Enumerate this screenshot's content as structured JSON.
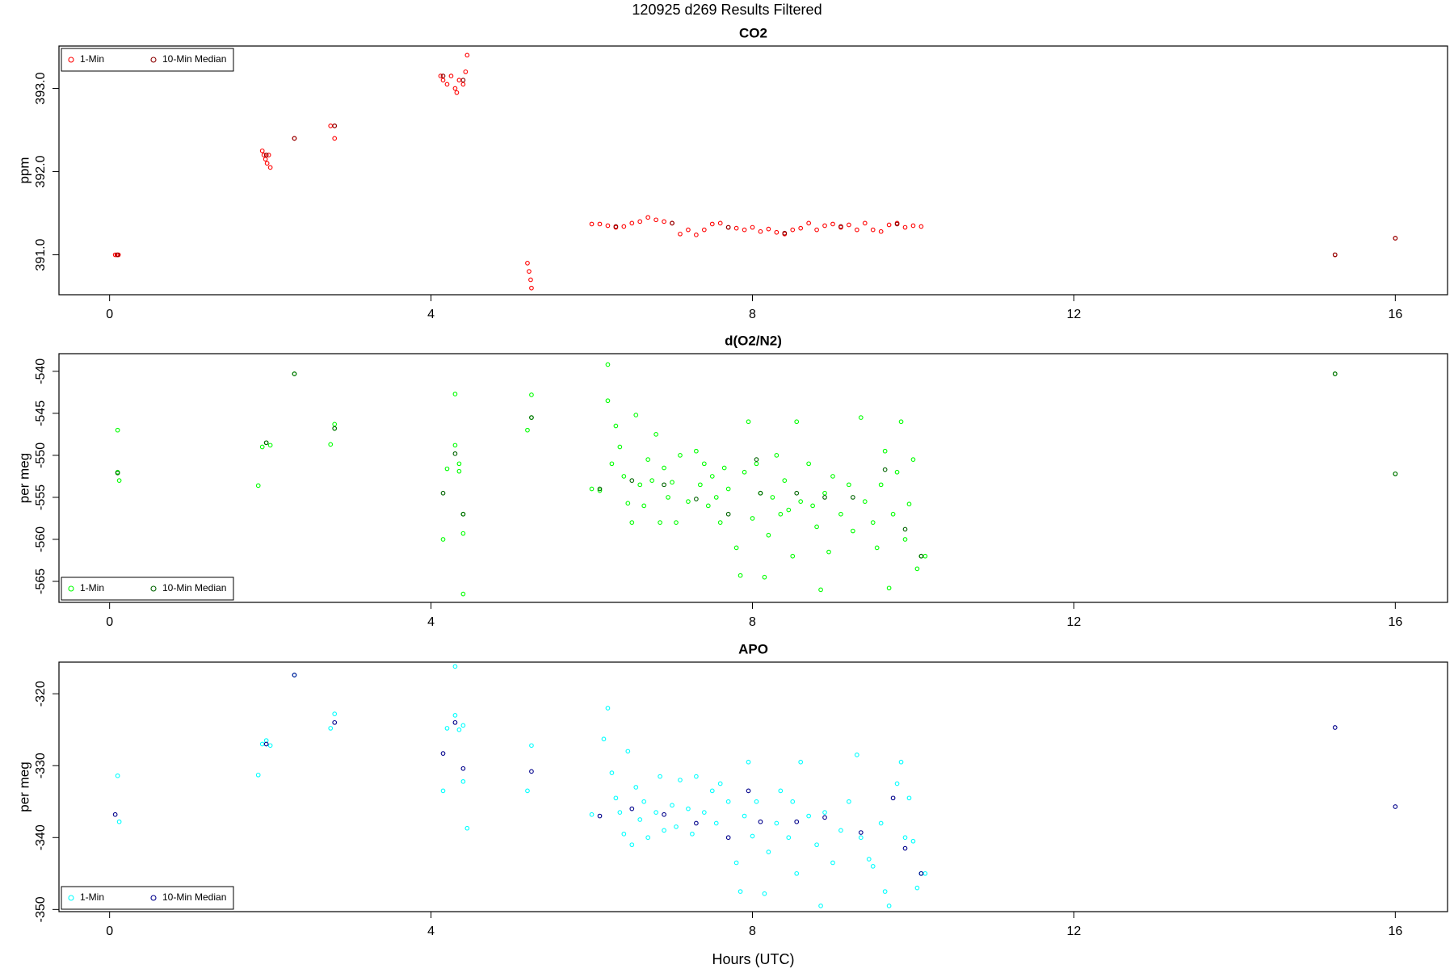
{
  "title": "120925   d269   Results Filtered",
  "chart_data": [
    {
      "type": "scatter",
      "title": "CO2",
      "y_label": "ppm",
      "legend": "top-left",
      "xlim": [
        -0.63,
        16.65
      ],
      "xticks": [
        0,
        4,
        8,
        12,
        16
      ],
      "ylim": [
        390.52,
        393.51
      ],
      "yticks": [
        {
          "value": 391,
          "label": "391.0"
        },
        {
          "value": 392,
          "label": "392.0"
        },
        {
          "value": 393,
          "label": "393.0"
        }
      ],
      "series": [
        {
          "name": "1-Min",
          "color": "#ff0000",
          "x": [
            0.07,
            0.09,
            0.11,
            1.9,
            1.92,
            1.94,
            1.96,
            1.98,
            2.0,
            2.3,
            2.75,
            2.8,
            2.8,
            4.12,
            4.15,
            4.2,
            4.25,
            4.3,
            4.32,
            4.35,
            4.4,
            4.43,
            4.45,
            5.2,
            5.22,
            5.24,
            5.25,
            6.0,
            6.1,
            6.2,
            6.3,
            6.4,
            6.5,
            6.6,
            6.7,
            6.8,
            6.9,
            7.0,
            7.1,
            7.2,
            7.3,
            7.4,
            7.5,
            7.6,
            7.7,
            7.8,
            7.9,
            8.0,
            8.1,
            8.2,
            8.3,
            8.4,
            8.5,
            8.6,
            8.7,
            8.8,
            8.9,
            9.0,
            9.1,
            9.2,
            9.3,
            9.4,
            9.5,
            9.6,
            9.7,
            9.8,
            9.9,
            10.0,
            10.1,
            15.25,
            16.0
          ],
          "values": [
            391.0,
            391.0,
            391.0,
            392.25,
            392.2,
            392.15,
            392.1,
            392.2,
            392.05,
            392.4,
            392.55,
            392.55,
            392.4,
            393.15,
            393.1,
            393.05,
            393.15,
            393.0,
            392.95,
            393.1,
            393.05,
            393.2,
            393.4,
            390.9,
            390.8,
            390.7,
            390.6,
            391.37,
            391.37,
            391.35,
            391.33,
            391.34,
            391.38,
            391.4,
            391.45,
            391.42,
            391.4,
            391.38,
            391.25,
            391.3,
            391.24,
            391.3,
            391.37,
            391.38,
            391.33,
            391.32,
            391.3,
            391.33,
            391.28,
            391.31,
            391.27,
            391.25,
            391.3,
            391.32,
            391.38,
            391.3,
            391.35,
            391.37,
            391.33,
            391.36,
            391.3,
            391.38,
            391.3,
            391.28,
            391.36,
            391.38,
            391.33,
            391.35,
            391.34,
            391.0,
            391.2
          ]
        },
        {
          "name": "10-Min Median",
          "color": "#8b0000",
          "x": [
            0.1,
            1.95,
            2.3,
            2.8,
            4.15,
            4.4,
            6.3,
            7.0,
            7.7,
            8.4,
            9.1,
            9.8,
            15.25,
            16.0
          ],
          "values": [
            391.0,
            392.2,
            392.4,
            392.55,
            393.15,
            393.1,
            391.34,
            391.38,
            391.33,
            391.26,
            391.34,
            391.37,
            391.0,
            391.2
          ]
        }
      ]
    },
    {
      "type": "scatter",
      "title": "d(O2/N2)",
      "y_label": "per meg",
      "legend": "bottom-left",
      "xlim": [
        -0.63,
        16.65
      ],
      "xticks": [
        0,
        4,
        8,
        12,
        16
      ],
      "ylim": [
        -567.5,
        -537.9
      ],
      "yticks": [
        -565,
        -560,
        -555,
        -550,
        -545,
        -540
      ],
      "series": [
        {
          "name": "1-Min",
          "color": "#00ff00",
          "x": [
            0.1,
            0.1,
            0.12,
            1.85,
            1.9,
            1.95,
            2.0,
            2.3,
            2.75,
            2.8,
            2.8,
            4.15,
            4.2,
            4.3,
            4.3,
            4.35,
            4.4,
            4.4,
            4.4,
            4.35,
            5.2,
            5.25,
            5.25,
            6.0,
            6.1,
            6.2,
            6.2,
            6.25,
            6.3,
            6.35,
            6.4,
            6.45,
            6.5,
            6.55,
            6.6,
            6.65,
            6.7,
            6.75,
            6.8,
            6.85,
            6.9,
            6.95,
            7.0,
            7.05,
            7.1,
            7.2,
            7.3,
            7.35,
            7.4,
            7.45,
            7.5,
            7.55,
            7.6,
            7.65,
            7.7,
            7.8,
            7.85,
            7.9,
            7.95,
            8.0,
            8.05,
            8.1,
            8.15,
            8.2,
            8.25,
            8.3,
            8.35,
            8.4,
            8.45,
            8.5,
            8.55,
            8.6,
            8.7,
            8.75,
            8.8,
            8.85,
            8.9,
            8.95,
            9.0,
            9.1,
            9.2,
            9.25,
            9.35,
            9.4,
            9.5,
            9.55,
            9.6,
            9.65,
            9.7,
            9.75,
            9.8,
            9.85,
            9.9,
            9.95,
            10.0,
            10.05,
            10.1,
            10.15,
            15.25,
            16.0
          ],
          "values": [
            -547,
            -552,
            -553,
            -553.6,
            -549,
            -548.5,
            -548.8,
            -540.3,
            -548.7,
            -546.3,
            -546.8,
            -560,
            -551.6,
            -542.7,
            -548.8,
            -551,
            -557,
            -559.3,
            -566.5,
            -551.9,
            -547,
            -542.8,
            -545.5,
            -554,
            -554.2,
            -539.2,
            -543.5,
            -551,
            -546.5,
            -549,
            -552.5,
            -555.7,
            -558,
            -545.2,
            -553.5,
            -556,
            -550.5,
            -553,
            -547.5,
            -558,
            -551.5,
            -555,
            -553.2,
            -558,
            -550,
            -555.5,
            -549.5,
            -553.5,
            -551,
            -556,
            -552.5,
            -555,
            -558,
            -551.5,
            -554,
            -561,
            -564.3,
            -552,
            -546,
            -557.5,
            -551,
            -554.5,
            -564.5,
            -559.5,
            -555,
            -550,
            -557,
            -553,
            -556.5,
            -562,
            -546,
            -555.5,
            -551,
            -556,
            -558.5,
            -566,
            -554.5,
            -561.5,
            -552.5,
            -557,
            -553.5,
            -559,
            -545.5,
            -555.5,
            -558,
            -561,
            -553.5,
            -549.5,
            -565.8,
            -557,
            -552,
            -546,
            -560,
            -555.8,
            -550.5,
            -563.5,
            -562,
            -562,
            -540.3,
            -552.2
          ]
        },
        {
          "name": "10-Min Median",
          "color": "#006400",
          "x": [
            0.1,
            1.95,
            2.3,
            2.8,
            4.15,
            4.3,
            4.4,
            5.25,
            6.1,
            6.5,
            6.9,
            7.3,
            7.7,
            8.05,
            8.1,
            8.55,
            8.9,
            9.25,
            9.65,
            9.9,
            10.1,
            15.25,
            16.0
          ],
          "values": [
            -552.1,
            -548.5,
            -540.3,
            -546.8,
            -554.5,
            -549.8,
            -557,
            -545.5,
            -554,
            -553,
            -553.5,
            -555.2,
            -557,
            -550.5,
            -554.5,
            -554.5,
            -555,
            -555,
            -551.7,
            -558.8,
            -562,
            -540.3,
            -552.2
          ]
        }
      ]
    },
    {
      "type": "scatter",
      "title": "APO",
      "y_label": "per meg",
      "x_label": "Hours (UTC)",
      "legend": "bottom-left",
      "xlim": [
        -0.63,
        16.65
      ],
      "xticks": [
        0,
        4,
        8,
        12,
        16
      ],
      "ylim": [
        -350.3,
        -315.6
      ],
      "yticks": [
        -350,
        -340,
        -330,
        -320
      ],
      "series": [
        {
          "name": "1-Min",
          "color": "#00ffff",
          "x": [
            0.1,
            0.12,
            1.85,
            1.9,
            1.95,
            2.0,
            2.3,
            2.75,
            2.8,
            4.15,
            4.2,
            4.3,
            4.3,
            4.35,
            4.4,
            4.4,
            4.45,
            5.2,
            5.25,
            6.0,
            6.15,
            6.2,
            6.25,
            6.3,
            6.35,
            6.4,
            6.45,
            6.5,
            6.55,
            6.6,
            6.65,
            6.7,
            6.8,
            6.85,
            6.9,
            7.0,
            7.05,
            7.1,
            7.2,
            7.25,
            7.3,
            7.4,
            7.5,
            7.55,
            7.6,
            7.7,
            7.8,
            7.85,
            7.9,
            7.95,
            8.0,
            8.05,
            8.15,
            8.2,
            8.3,
            8.35,
            8.45,
            8.5,
            8.55,
            8.6,
            8.7,
            8.8,
            8.85,
            8.9,
            9.0,
            9.1,
            9.2,
            9.3,
            9.35,
            9.45,
            9.5,
            9.6,
            9.65,
            9.7,
            9.8,
            9.85,
            9.9,
            9.95,
            10.0,
            10.05,
            10.1,
            10.15
          ],
          "values": [
            -331.4,
            -337.8,
            -331.3,
            -327,
            -326.5,
            -327.2,
            -317.4,
            -324.8,
            -322.8,
            -333.5,
            -324.8,
            -316.2,
            -323,
            -325,
            -324.4,
            -332.2,
            -338.7,
            -333.5,
            -327.2,
            -336.8,
            -326.3,
            -322,
            -331,
            -334.5,
            -336.5,
            -339.5,
            -328,
            -341,
            -333,
            -337.5,
            -335,
            -340,
            -336.5,
            -331.5,
            -339,
            -335.5,
            -338.5,
            -332,
            -336,
            -339.5,
            -331.5,
            -336.5,
            -333.5,
            -338,
            -332.5,
            -335,
            -343.5,
            -347.5,
            -337,
            -329.5,
            -339.8,
            -335,
            -347.8,
            -342,
            -338,
            -333.5,
            -340,
            -335,
            -345,
            -329.5,
            -337,
            -341,
            -349.5,
            -336.5,
            -343.5,
            -339,
            -335,
            -328.5,
            -340,
            -343,
            -344,
            -338,
            -347.5,
            -349.5,
            -332.5,
            -329.5,
            -340,
            -334.5,
            -340.5,
            -347,
            -345,
            -345
          ]
        },
        {
          "name": "10-Min Median",
          "color": "#00008b",
          "x": [
            0.07,
            1.95,
            2.3,
            2.8,
            4.15,
            4.3,
            4.4,
            5.25,
            6.1,
            6.5,
            6.9,
            7.3,
            7.7,
            7.95,
            8.1,
            8.55,
            8.9,
            9.35,
            9.75,
            9.9,
            10.1,
            15.25,
            16.0
          ],
          "values": [
            -336.8,
            -327,
            -317.4,
            -324,
            -328.3,
            -324,
            -330.4,
            -330.8,
            -337,
            -336,
            -336.8,
            -338,
            -340,
            -333.5,
            -337.8,
            -337.8,
            -337.2,
            -339.3,
            -334.5,
            -341.5,
            -345,
            -324.7,
            -335.7
          ]
        }
      ]
    }
  ]
}
